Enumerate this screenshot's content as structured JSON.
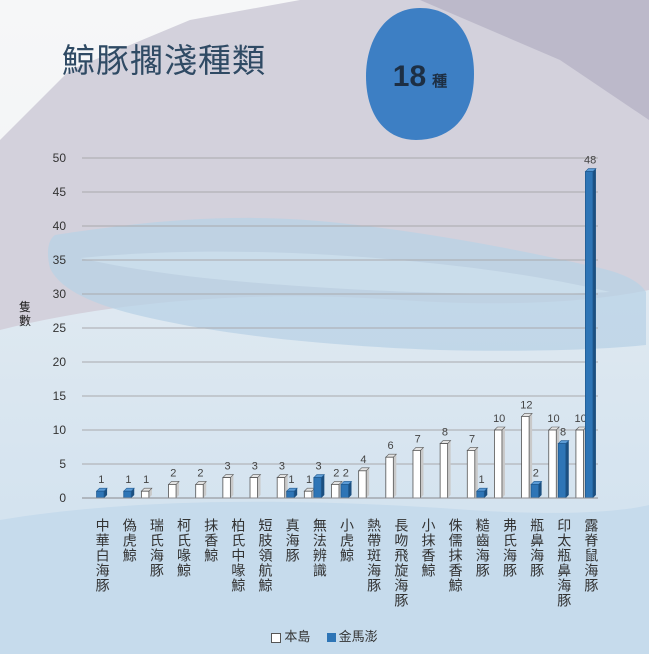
{
  "title": "鯨豚擱淺種類",
  "badge": {
    "count": "18",
    "unit": "種"
  },
  "chart_data": {
    "type": "bar",
    "ylabel": "隻數",
    "ylim": [
      0,
      50
    ],
    "yticks": [
      0,
      5,
      10,
      15,
      20,
      25,
      30,
      35,
      40,
      45,
      50
    ],
    "grid": true,
    "legend_position": "bottom",
    "categories": [
      "中華白海豚",
      "偽虎鯨",
      "瑞氏海豚",
      "柯氏喙鯨",
      "抹香鯨",
      "柏氏中喙鯨",
      "短肢領航鯨",
      "真海豚",
      "無法辨識",
      "小虎鯨",
      "熱帶斑海豚",
      "長吻飛旋海豚",
      "小抹香鯨",
      "侏儒抹香鯨",
      "糙齒海豚",
      "弗氏海豚",
      "瓶鼻海豚",
      "印太瓶鼻海豚",
      "露脊鼠海豚"
    ],
    "series": [
      {
        "name": "本島",
        "values": [
          null,
          null,
          1,
          2,
          2,
          3,
          3,
          3,
          1,
          2,
          4,
          6,
          7,
          8,
          7,
          10,
          12,
          10,
          10
        ]
      },
      {
        "name": "金馬澎",
        "values": [
          1,
          1,
          null,
          null,
          null,
          null,
          null,
          1,
          3,
          2,
          null,
          null,
          null,
          null,
          1,
          null,
          2,
          8,
          48
        ]
      }
    ]
  },
  "colors": {
    "mainland_fill": "#ffffff",
    "islands_fill": "#2e75b6",
    "title": "#2f4a64",
    "badge": "#3d7fc4"
  }
}
